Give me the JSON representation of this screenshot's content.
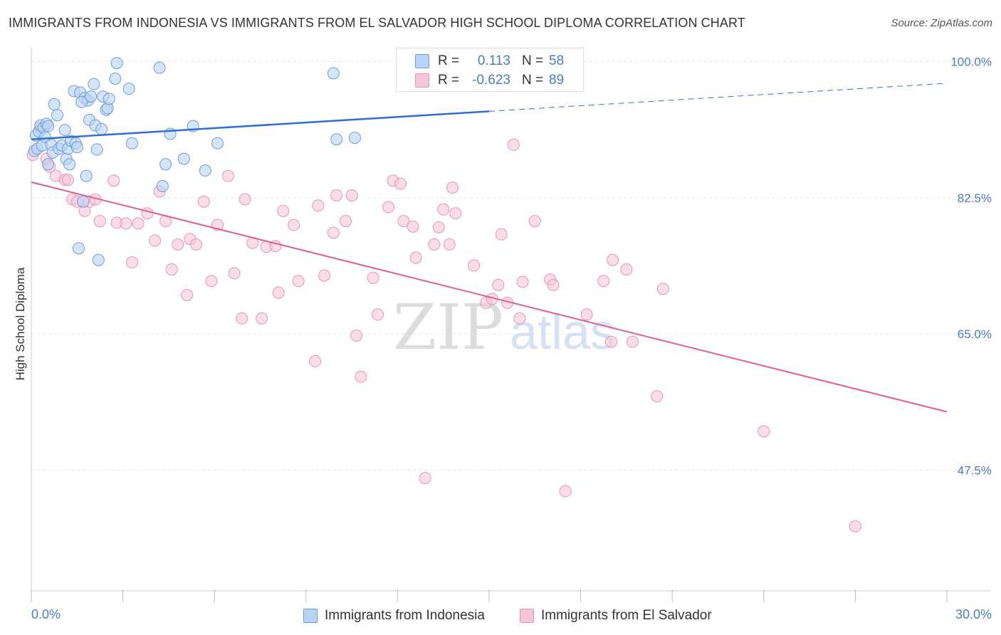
{
  "header": {
    "title": "IMMIGRANTS FROM INDONESIA VS IMMIGRANTS FROM EL SALVADOR HIGH SCHOOL DIPLOMA CORRELATION CHART",
    "source": "Source: ZipAtlas.com"
  },
  "watermark": {
    "zip": "ZIP",
    "atlas": "atlas"
  },
  "legend": {
    "entries": [
      {
        "name": "Immigrants from Indonesia",
        "r_label": "R =",
        "r_value": "0.113",
        "n_label": "N =",
        "n_value": "58"
      },
      {
        "name": "Immigrants from El Salvador",
        "r_label": "R =",
        "r_value": "-0.623",
        "n_label": "N =",
        "n_value": "89"
      }
    ]
  },
  "colors": {
    "indonesia_fill": "#b9d3f5",
    "indonesia_stroke": "#6c9bdc",
    "indonesia_line": "#2e6fd0",
    "elsalvador_fill": "#f7c6d6",
    "elsalvador_stroke": "#e695b2",
    "elsalvador_line": "#e0608f",
    "axis_text": "#4a7bd0",
    "grid": "#e3e3e3"
  },
  "chart_data": {
    "type": "scatter",
    "title": "IMMIGRANTS FROM INDONESIA VS IMMIGRANTS FROM EL SALVADOR HIGH SCHOOL DIPLOMA CORRELATION CHART",
    "xlabel": "",
    "ylabel": "High School Diploma",
    "xlim": [
      0,
      30
    ],
    "ylim": [
      32,
      101.5
    ],
    "x_tick_labels": [
      "0.0%",
      "30.0%"
    ],
    "y_ticks": [
      47.5,
      65.0,
      82.5,
      100.0
    ],
    "y_tick_labels": [
      "47.5%",
      "65.0%",
      "82.5%",
      "100.0%"
    ],
    "grid": true,
    "legend_position": "top-center",
    "series": [
      {
        "name": "Immigrants from Indonesia",
        "trend": {
          "x": [
            0,
            15
          ],
          "y": [
            90.0,
            93.6
          ],
          "dashed_to": [
            30,
            97.2
          ]
        },
        "points": [
          [
            0.1,
            88.5
          ],
          [
            0.15,
            90.5
          ],
          [
            0.2,
            88.8
          ],
          [
            0.25,
            91.0
          ],
          [
            0.3,
            91.8
          ],
          [
            0.35,
            89.2
          ],
          [
            0.4,
            91.5
          ],
          [
            0.45,
            90.3
          ],
          [
            0.5,
            92.0
          ],
          [
            0.55,
            91.7
          ],
          [
            0.65,
            89.3
          ],
          [
            0.7,
            88.3
          ],
          [
            0.75,
            94.5
          ],
          [
            0.85,
            93.1
          ],
          [
            0.9,
            88.8
          ],
          [
            1.0,
            89.2
          ],
          [
            1.1,
            91.2
          ],
          [
            1.15,
            87.5
          ],
          [
            1.2,
            88.8
          ],
          [
            1.25,
            86.8
          ],
          [
            1.3,
            89.8
          ],
          [
            1.4,
            96.2
          ],
          [
            1.45,
            89.5
          ],
          [
            1.5,
            89.0
          ],
          [
            1.55,
            76.0
          ],
          [
            1.6,
            96.0
          ],
          [
            1.7,
            82.0
          ],
          [
            1.75,
            95.3
          ],
          [
            1.8,
            85.3
          ],
          [
            1.85,
            95.0
          ],
          [
            1.9,
            92.5
          ],
          [
            1.95,
            95.5
          ],
          [
            2.05,
            97.1
          ],
          [
            2.1,
            91.8
          ],
          [
            2.15,
            88.7
          ],
          [
            2.2,
            74.5
          ],
          [
            2.3,
            91.3
          ],
          [
            2.35,
            95.5
          ],
          [
            2.45,
            93.8
          ],
          [
            2.5,
            94.0
          ],
          [
            2.55,
            95.2
          ],
          [
            2.75,
            97.8
          ],
          [
            2.8,
            99.8
          ],
          [
            3.2,
            96.5
          ],
          [
            3.3,
            89.5
          ],
          [
            4.2,
            99.2
          ],
          [
            4.3,
            84.0
          ],
          [
            4.4,
            86.8
          ],
          [
            4.55,
            90.7
          ],
          [
            5.0,
            87.5
          ],
          [
            5.3,
            91.7
          ],
          [
            5.7,
            86.0
          ],
          [
            6.1,
            89.5
          ],
          [
            9.9,
            98.5
          ],
          [
            10.0,
            90.0
          ],
          [
            10.6,
            90.2
          ],
          [
            0.55,
            86.8
          ],
          [
            1.65,
            94.8
          ]
        ]
      },
      {
        "name": "Immigrants from El Salvador",
        "trend": {
          "x": [
            0,
            30
          ],
          "y": [
            84.5,
            55.0
          ]
        },
        "points": [
          [
            0.05,
            88.0
          ],
          [
            0.3,
            91.5
          ],
          [
            0.5,
            87.5
          ],
          [
            0.6,
            86.5
          ],
          [
            0.8,
            85.3
          ],
          [
            1.1,
            84.8
          ],
          [
            1.2,
            84.8
          ],
          [
            1.35,
            82.3
          ],
          [
            1.5,
            82.0
          ],
          [
            1.75,
            80.8
          ],
          [
            1.9,
            82.0
          ],
          [
            2.1,
            82.3
          ],
          [
            2.25,
            79.5
          ],
          [
            2.7,
            84.7
          ],
          [
            2.8,
            79.3
          ],
          [
            3.1,
            79.2
          ],
          [
            3.3,
            74.2
          ],
          [
            3.5,
            79.2
          ],
          [
            3.8,
            80.5
          ],
          [
            4.05,
            77.0
          ],
          [
            4.2,
            83.3
          ],
          [
            4.4,
            79.5
          ],
          [
            4.6,
            73.3
          ],
          [
            4.8,
            76.5
          ],
          [
            5.1,
            70.0
          ],
          [
            5.2,
            77.2
          ],
          [
            5.4,
            76.5
          ],
          [
            5.65,
            82.0
          ],
          [
            5.9,
            71.8
          ],
          [
            6.1,
            79.0
          ],
          [
            6.45,
            85.3
          ],
          [
            6.65,
            72.8
          ],
          [
            6.9,
            67.0
          ],
          [
            7.0,
            82.3
          ],
          [
            7.25,
            76.7
          ],
          [
            7.55,
            67.0
          ],
          [
            7.7,
            76.2
          ],
          [
            8.0,
            76.3
          ],
          [
            8.1,
            70.3
          ],
          [
            8.25,
            80.8
          ],
          [
            8.6,
            79.0
          ],
          [
            8.75,
            71.8
          ],
          [
            9.3,
            61.5
          ],
          [
            9.4,
            81.5
          ],
          [
            9.6,
            72.5
          ],
          [
            9.9,
            78.0
          ],
          [
            10.0,
            82.8
          ],
          [
            10.3,
            79.5
          ],
          [
            10.5,
            82.8
          ],
          [
            10.65,
            64.8
          ],
          [
            10.8,
            59.5
          ],
          [
            11.2,
            72.2
          ],
          [
            11.35,
            67.5
          ],
          [
            11.7,
            81.3
          ],
          [
            11.85,
            84.7
          ],
          [
            12.1,
            84.3
          ],
          [
            12.2,
            79.5
          ],
          [
            12.5,
            78.8
          ],
          [
            12.6,
            74.8
          ],
          [
            12.9,
            46.5
          ],
          [
            13.2,
            76.5
          ],
          [
            13.35,
            78.7
          ],
          [
            13.5,
            81.0
          ],
          [
            13.7,
            76.5
          ],
          [
            13.8,
            83.8
          ],
          [
            13.9,
            80.5
          ],
          [
            14.5,
            73.8
          ],
          [
            14.9,
            69.0
          ],
          [
            15.1,
            69.5
          ],
          [
            15.3,
            71.3
          ],
          [
            15.4,
            77.8
          ],
          [
            15.6,
            69.0
          ],
          [
            15.8,
            89.3
          ],
          [
            16.0,
            67.0
          ],
          [
            16.1,
            71.7
          ],
          [
            16.5,
            79.5
          ],
          [
            17.0,
            72.0
          ],
          [
            17.1,
            71.3
          ],
          [
            17.5,
            44.8
          ],
          [
            18.2,
            67.5
          ],
          [
            18.75,
            71.8
          ],
          [
            19.0,
            64.0
          ],
          [
            19.05,
            74.5
          ],
          [
            19.5,
            73.3
          ],
          [
            19.7,
            64.0
          ],
          [
            20.5,
            57.0
          ],
          [
            20.7,
            70.8
          ],
          [
            24.0,
            52.5
          ],
          [
            27.0,
            40.3
          ]
        ]
      }
    ]
  }
}
